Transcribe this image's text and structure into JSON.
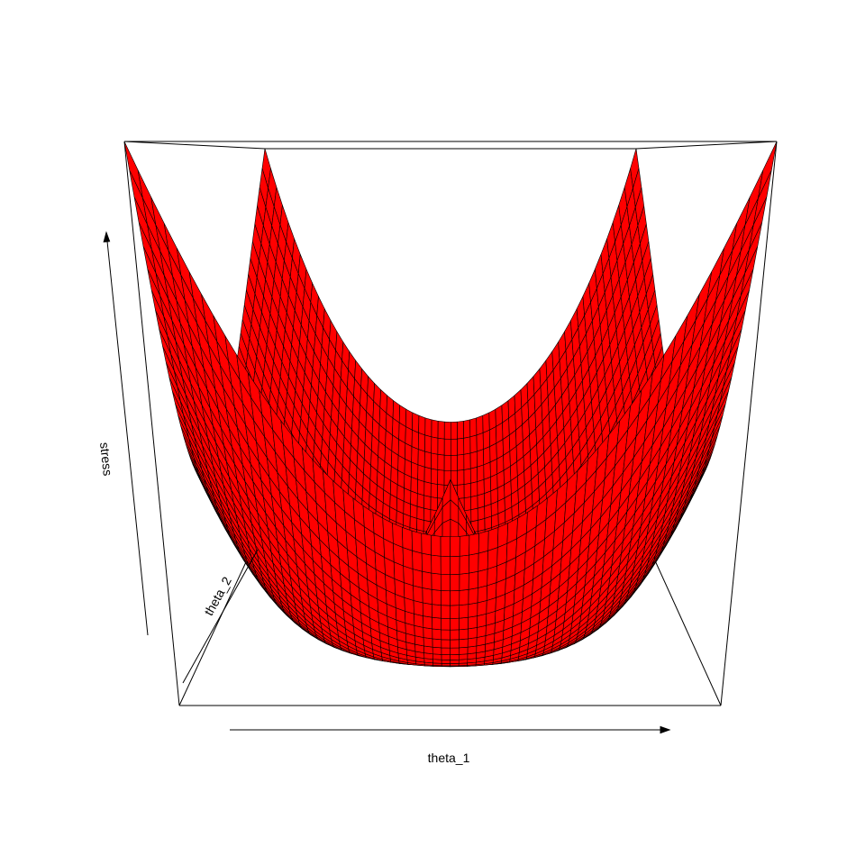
{
  "chart_data": {
    "type": "surface",
    "title": "",
    "xlabel": "theta_1",
    "ylabel": "theta_2",
    "zlabel": "stress",
    "surface": "stress = (r - 1)^2 with r = sqrt(theta_1^2 + theta_2^2)",
    "grid_size": 60,
    "color": "#ff0000",
    "edge_color": "#000000",
    "box": true,
    "ticks": false
  }
}
